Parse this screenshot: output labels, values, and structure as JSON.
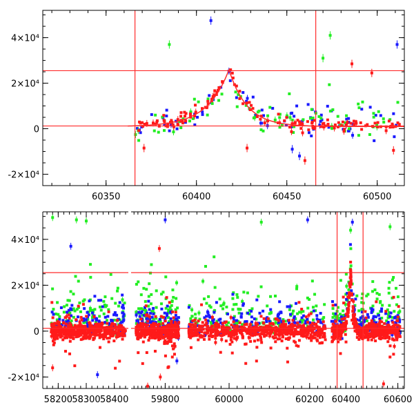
{
  "figure": {
    "panels": [
      {
        "id": "top",
        "type": "scatter",
        "xlim": [
          60315,
          60515
        ],
        "ylim": [
          -25000,
          52000
        ],
        "xticks": [
          60350,
          60400,
          60450,
          60500
        ],
        "yticks": [
          {
            "value": -20000,
            "label": "-2×10⁴"
          },
          {
            "value": 0,
            "label": "0"
          },
          {
            "value": 20000,
            "label": "2×10⁴"
          },
          {
            "value": 40000,
            "label": "4×10⁴"
          }
        ],
        "hlines": [
          1200,
          25500
        ],
        "vlines": [
          60366,
          60466
        ]
      },
      {
        "id": "bottom",
        "type": "scatter",
        "segments": [
          {
            "xlim": [
              58145,
              58450
            ],
            "xticks": [
              58200,
              58300,
              58400
            ]
          },
          {
            "xlim": [
              59625,
              59880
            ],
            "xticks": [
              59800
            ]
          },
          {
            "xlim": [
              59880,
              60245
            ],
            "xticks": [
              60000,
              60200
            ]
          },
          {
            "xlim": [
              60330,
              60625
            ],
            "xticks": [
              60400,
              60600
            ]
          }
        ],
        "ylim": [
          -25000,
          52000
        ],
        "yticks": [
          {
            "value": -20000,
            "label": "-2×10⁴"
          },
          {
            "value": 0,
            "label": "0"
          },
          {
            "value": 20000,
            "label": "2×10⁴"
          },
          {
            "value": 40000,
            "label": "4×10⁴"
          }
        ],
        "hlines": [
          1200,
          25500
        ],
        "vlines": [
          60366,
          60466
        ]
      }
    ]
  },
  "chart_data": [
    {
      "type": "scatter",
      "panel": "top",
      "xlim": [
        60315,
        60515
      ],
      "ylim": [
        -25000,
        52000
      ],
      "series_colors": {
        "red": "#ff1a1a",
        "green": "#22ee22",
        "blue": "#1a1aff"
      },
      "reference_lines": {
        "horizontal": [
          1200,
          25500
        ],
        "vertical": [
          60366,
          60466
        ]
      },
      "peak": {
        "x": 60418,
        "y": 27000
      },
      "outliers": [
        {
          "series": "blue",
          "x": 60408,
          "y": 47500
        },
        {
          "series": "green",
          "x": 60385,
          "y": 37000
        },
        {
          "series": "green",
          "x": 60474,
          "y": 41000
        },
        {
          "series": "green",
          "x": 60470,
          "y": 31000
        },
        {
          "series": "blue",
          "x": 60511,
          "y": 37000
        },
        {
          "series": "red",
          "x": 60486,
          "y": 28500
        },
        {
          "series": "red",
          "x": 60497,
          "y": 24500
        },
        {
          "series": "red",
          "x": 60371,
          "y": -8500
        },
        {
          "series": "red",
          "x": 60428,
          "y": -8500
        },
        {
          "series": "red",
          "x": 60460,
          "y": -14000
        },
        {
          "series": "red",
          "x": 60509,
          "y": -9500
        },
        {
          "series": "blue",
          "x": 60453,
          "y": -9000
        },
        {
          "series": "blue",
          "x": 60457,
          "y": -12000
        }
      ]
    },
    {
      "type": "scatter",
      "panel": "bottom",
      "ylim": [
        -25000,
        52000
      ],
      "series_colors": {
        "red": "#ff1a1a",
        "green": "#22ee22",
        "blue": "#1a1aff"
      },
      "reference_lines": {
        "horizontal": [
          1200,
          25500
        ],
        "vertical": [
          60366,
          60466
        ]
      },
      "seasons": [
        [
          58175,
          58440
        ],
        [
          59650,
          59870
        ],
        [
          59900,
          60240
        ],
        [
          60345,
          60610
        ]
      ],
      "outliers": [
        {
          "series": "green",
          "x": 58180,
          "y": 49500
        },
        {
          "series": "green",
          "x": 58265,
          "y": 48500
        },
        {
          "series": "green",
          "x": 58300,
          "y": 48000
        },
        {
          "series": "blue",
          "x": 58245,
          "y": 37000
        },
        {
          "series": "blue",
          "x": 58340,
          "y": -19000
        },
        {
          "series": "red",
          "x": 58180,
          "y": -16000
        },
        {
          "series": "blue",
          "x": 59800,
          "y": 48500
        },
        {
          "series": "red",
          "x": 59770,
          "y": 36000
        },
        {
          "series": "red",
          "x": 59710,
          "y": -24000
        },
        {
          "series": "red",
          "x": 59775,
          "y": -20000
        },
        {
          "series": "blue",
          "x": 59860,
          "y": -13000
        },
        {
          "series": "blue",
          "x": 60195,
          "y": 48500
        },
        {
          "series": "green",
          "x": 60080,
          "y": 47500
        },
        {
          "series": "blue",
          "x": 60425,
          "y": 47500
        },
        {
          "series": "green",
          "x": 60418,
          "y": 44000
        },
        {
          "series": "red",
          "x": 60545,
          "y": -23000
        },
        {
          "series": "green",
          "x": 60570,
          "y": 45500
        }
      ]
    }
  ]
}
